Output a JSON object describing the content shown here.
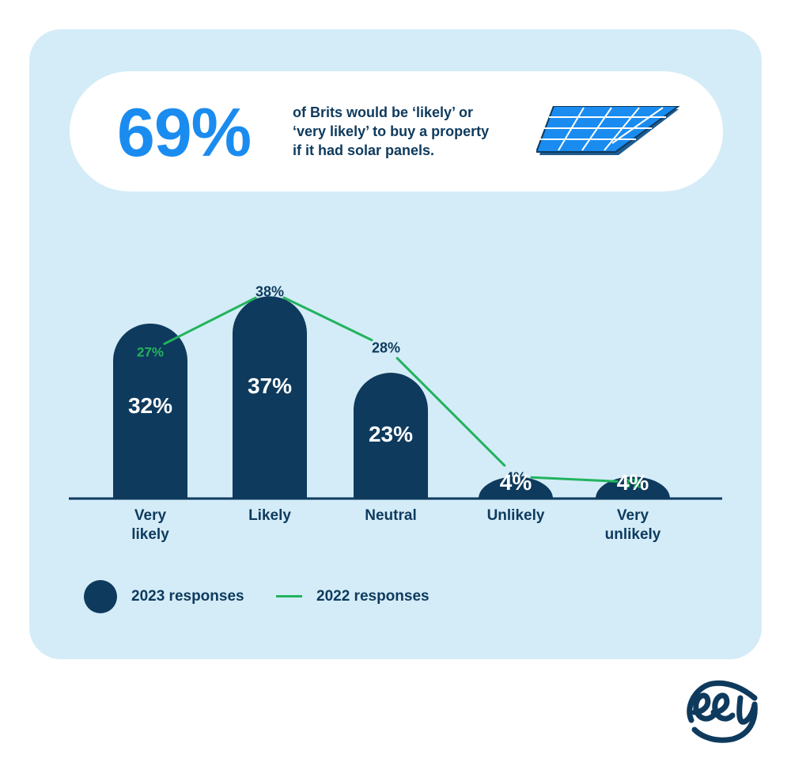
{
  "colors": {
    "panel_bg": "#d4ecf8",
    "bar": "#0e3a5d",
    "line_2022": "#22b35e",
    "headline_blue": "#1a8cf0",
    "text_dark": "#0e3a5d",
    "baseline": "#0e3a5d"
  },
  "headline": {
    "stat": "69%",
    "line1": "of Brits would be ‘likely’ or",
    "line2": "‘very likely’ to buy a property",
    "line3": "if it had solar panels.",
    "icon": "solar-panel-icon"
  },
  "chart_data": {
    "type": "bar",
    "categories": [
      "Very likely",
      "Likely",
      "Neutral",
      "Unlikely",
      "Very unlikely"
    ],
    "category_lines": [
      [
        "Very",
        "likely"
      ],
      [
        "Likely"
      ],
      [
        "Neutral"
      ],
      [
        "Unlikely"
      ],
      [
        "Very",
        "unlikely"
      ]
    ],
    "series": [
      {
        "name": "2023 responses",
        "kind": "bar",
        "values": [
          32,
          37,
          23,
          4,
          4
        ],
        "labels": [
          "32%",
          "37%",
          "23%",
          "4%",
          "4%"
        ]
      },
      {
        "name": "2022 responses",
        "kind": "line",
        "values": [
          27,
          38,
          28,
          4,
          3
        ],
        "labels": [
          "27%",
          "38%",
          "28%",
          "4%",
          "3%"
        ]
      }
    ],
    "title": "",
    "xlabel": "",
    "ylabel": "",
    "ylim": [
      0,
      40
    ],
    "grid": false,
    "legend_position": "bottom-left"
  },
  "legend": {
    "bar_label": "2023 responses",
    "line_label": "2022 responses"
  },
  "logo": {
    "icon": "company-logo-icon"
  }
}
